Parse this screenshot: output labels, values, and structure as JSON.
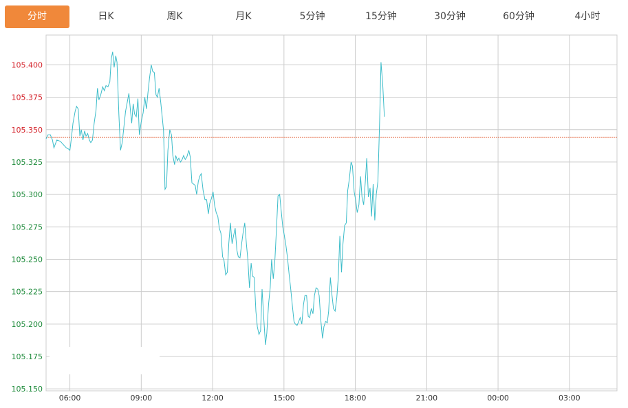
{
  "tabs": [
    {
      "label": "分时",
      "active": true
    },
    {
      "label": "日K",
      "active": false
    },
    {
      "label": "周K",
      "active": false
    },
    {
      "label": "月K",
      "active": false
    },
    {
      "label": "5分钟",
      "active": false
    },
    {
      "label": "15分钟",
      "active": false
    },
    {
      "label": "30分钟",
      "active": false
    },
    {
      "label": "60分钟",
      "active": false
    },
    {
      "label": "4小时",
      "active": false
    }
  ],
  "colors": {
    "accent": "#f0883a",
    "line": "#3bbcc9",
    "reference": "#e0552a",
    "above_ref_label": "#d4222a",
    "below_ref_label": "#1d8a3a",
    "grid": "#cccccc"
  },
  "chart_data": {
    "type": "line",
    "title": "",
    "xlabel": "",
    "ylabel": "",
    "x_ticks": [
      "06:00",
      "09:00",
      "12:00",
      "15:00",
      "18:00",
      "21:00",
      "00:00",
      "03:00"
    ],
    "y_ticks": [
      105.4,
      105.375,
      105.35,
      105.325,
      105.3,
      105.275,
      105.25,
      105.225,
      105.2,
      105.175,
      105.15
    ],
    "y_tick_labels": [
      "105.400",
      "105.375",
      "105.350",
      "105.325",
      "105.300",
      "105.275",
      "105.250",
      "105.225",
      "105.200",
      "105.175",
      "105.150"
    ],
    "ylim": [
      105.1485,
      105.423
    ],
    "x_hours_range": [
      5.0,
      29.0
    ],
    "reference_price": 105.344,
    "grid": true,
    "series": [
      {
        "values": [
          [
            5.0,
            105.343
          ],
          [
            5.08,
            105.346
          ],
          [
            5.18,
            105.346
          ],
          [
            5.27,
            105.342
          ],
          [
            5.33,
            105.336
          ],
          [
            5.45,
            105.342
          ],
          [
            5.6,
            105.341
          ],
          [
            5.75,
            105.338
          ],
          [
            5.85,
            105.336
          ],
          [
            5.95,
            105.335
          ],
          [
            6.0,
            105.334
          ],
          [
            6.06,
            105.343
          ],
          [
            6.13,
            105.355
          ],
          [
            6.22,
            105.364
          ],
          [
            6.28,
            105.368
          ],
          [
            6.35,
            105.366
          ],
          [
            6.42,
            105.345
          ],
          [
            6.48,
            105.35
          ],
          [
            6.55,
            105.342
          ],
          [
            6.62,
            105.349
          ],
          [
            6.68,
            105.345
          ],
          [
            6.75,
            105.347
          ],
          [
            6.82,
            105.342
          ],
          [
            6.88,
            105.34
          ],
          [
            6.95,
            105.342
          ],
          [
            7.02,
            105.355
          ],
          [
            7.1,
            105.365
          ],
          [
            7.16,
            105.382
          ],
          [
            7.22,
            105.373
          ],
          [
            7.3,
            105.377
          ],
          [
            7.38,
            105.383
          ],
          [
            7.45,
            105.38
          ],
          [
            7.52,
            105.384
          ],
          [
            7.6,
            105.383
          ],
          [
            7.68,
            105.387
          ],
          [
            7.74,
            105.405
          ],
          [
            7.8,
            105.41
          ],
          [
            7.86,
            105.398
          ],
          [
            7.93,
            105.407
          ],
          [
            7.98,
            105.402
          ],
          [
            8.06,
            105.362
          ],
          [
            8.13,
            105.334
          ],
          [
            8.2,
            105.34
          ],
          [
            8.27,
            105.352
          ],
          [
            8.34,
            105.364
          ],
          [
            8.42,
            105.372
          ],
          [
            8.48,
            105.378
          ],
          [
            8.55,
            105.364
          ],
          [
            8.6,
            105.355
          ],
          [
            8.66,
            105.37
          ],
          [
            8.72,
            105.362
          ],
          [
            8.79,
            105.36
          ],
          [
            8.86,
            105.374
          ],
          [
            8.92,
            105.346
          ],
          [
            9.0,
            105.356
          ],
          [
            9.08,
            105.363
          ],
          [
            9.15,
            105.375
          ],
          [
            9.22,
            105.366
          ],
          [
            9.28,
            105.378
          ],
          [
            9.35,
            105.39
          ],
          [
            9.42,
            105.4
          ],
          [
            9.48,
            105.395
          ],
          [
            9.55,
            105.394
          ],
          [
            9.62,
            105.377
          ],
          [
            9.68,
            105.375
          ],
          [
            9.75,
            105.382
          ],
          [
            9.82,
            105.371
          ],
          [
            9.88,
            105.36
          ],
          [
            9.94,
            105.349
          ],
          [
            10.0,
            105.304
          ],
          [
            10.06,
            105.306
          ],
          [
            10.12,
            105.334
          ],
          [
            10.2,
            105.35
          ],
          [
            10.27,
            105.346
          ],
          [
            10.33,
            105.33
          ],
          [
            10.4,
            105.323
          ],
          [
            10.45,
            105.33
          ],
          [
            10.52,
            105.326
          ],
          [
            10.58,
            105.328
          ],
          [
            10.65,
            105.325
          ],
          [
            10.72,
            105.327
          ],
          [
            10.78,
            105.33
          ],
          [
            10.85,
            105.327
          ],
          [
            10.92,
            105.329
          ],
          [
            11.0,
            105.334
          ],
          [
            11.06,
            105.329
          ],
          [
            11.13,
            105.309
          ],
          [
            11.2,
            105.308
          ],
          [
            11.27,
            105.307
          ],
          [
            11.33,
            105.3
          ],
          [
            11.4,
            105.31
          ],
          [
            11.46,
            105.314
          ],
          [
            11.52,
            105.316
          ],
          [
            11.6,
            105.303
          ],
          [
            11.68,
            105.296
          ],
          [
            11.75,
            105.296
          ],
          [
            11.82,
            105.285
          ],
          [
            11.88,
            105.293
          ],
          [
            11.95,
            105.297
          ],
          [
            12.02,
            105.302
          ],
          [
            12.08,
            105.292
          ],
          [
            12.15,
            105.286
          ],
          [
            12.22,
            105.283
          ],
          [
            12.28,
            105.274
          ],
          [
            12.35,
            105.27
          ],
          [
            12.42,
            105.252
          ],
          [
            12.48,
            105.249
          ],
          [
            12.55,
            105.238
          ],
          [
            12.62,
            105.24
          ],
          [
            12.68,
            105.262
          ],
          [
            12.75,
            105.278
          ],
          [
            12.82,
            105.262
          ],
          [
            12.88,
            105.268
          ],
          [
            12.95,
            105.274
          ],
          [
            13.02,
            105.257
          ],
          [
            13.08,
            105.252
          ],
          [
            13.15,
            105.251
          ],
          [
            13.22,
            105.262
          ],
          [
            13.28,
            105.27
          ],
          [
            13.35,
            105.278
          ],
          [
            13.42,
            105.262
          ],
          [
            13.48,
            105.25
          ],
          [
            13.55,
            105.228
          ],
          [
            13.62,
            105.247
          ],
          [
            13.68,
            105.237
          ],
          [
            13.75,
            105.236
          ],
          [
            13.82,
            105.21
          ],
          [
            13.88,
            105.198
          ],
          [
            13.95,
            105.192
          ],
          [
            14.02,
            105.195
          ],
          [
            14.08,
            105.227
          ],
          [
            14.15,
            105.205
          ],
          [
            14.22,
            105.184
          ],
          [
            14.28,
            105.193
          ],
          [
            14.35,
            105.215
          ],
          [
            14.42,
            105.228
          ],
          [
            14.48,
            105.25
          ],
          [
            14.55,
            105.235
          ],
          [
            14.62,
            105.25
          ],
          [
            14.68,
            105.272
          ],
          [
            14.75,
            105.299
          ],
          [
            14.82,
            105.3
          ],
          [
            14.88,
            105.288
          ],
          [
            14.95,
            105.275
          ],
          [
            15.02,
            105.268
          ],
          [
            15.08,
            105.261
          ],
          [
            15.15,
            105.251
          ],
          [
            15.22,
            105.238
          ],
          [
            15.28,
            105.228
          ],
          [
            15.35,
            105.215
          ],
          [
            15.42,
            105.202
          ],
          [
            15.48,
            105.2
          ],
          [
            15.55,
            105.199
          ],
          [
            15.62,
            105.202
          ],
          [
            15.68,
            105.205
          ],
          [
            15.75,
            105.2
          ],
          [
            15.82,
            105.215
          ],
          [
            15.88,
            105.222
          ],
          [
            15.95,
            105.222
          ],
          [
            16.02,
            105.206
          ],
          [
            16.08,
            105.205
          ],
          [
            16.15,
            105.212
          ],
          [
            16.22,
            105.208
          ],
          [
            16.28,
            105.222
          ],
          [
            16.35,
            105.228
          ],
          [
            16.42,
            105.227
          ],
          [
            16.48,
            105.222
          ],
          [
            16.55,
            105.203
          ],
          [
            16.62,
            105.189
          ],
          [
            16.68,
            105.198
          ],
          [
            16.75,
            105.202
          ],
          [
            16.82,
            105.201
          ],
          [
            16.88,
            105.21
          ],
          [
            16.95,
            105.236
          ],
          [
            17.02,
            105.222
          ],
          [
            17.08,
            105.212
          ],
          [
            17.15,
            105.21
          ],
          [
            17.22,
            105.22
          ],
          [
            17.28,
            105.235
          ],
          [
            17.35,
            105.268
          ],
          [
            17.42,
            105.24
          ],
          [
            17.48,
            105.262
          ],
          [
            17.55,
            105.276
          ],
          [
            17.62,
            105.278
          ],
          [
            17.68,
            105.303
          ],
          [
            17.75,
            105.312
          ],
          [
            17.82,
            105.325
          ],
          [
            17.88,
            105.322
          ],
          [
            17.95,
            105.302
          ],
          [
            18.02,
            105.295
          ],
          [
            18.08,
            105.286
          ],
          [
            18.15,
            105.292
          ],
          [
            18.22,
            105.314
          ],
          [
            18.28,
            105.298
          ],
          [
            18.35,
            105.292
          ],
          [
            18.42,
            105.31
          ],
          [
            18.48,
            105.328
          ],
          [
            18.55,
            105.298
          ],
          [
            18.62,
            105.305
          ],
          [
            18.68,
            105.283
          ],
          [
            18.75,
            105.308
          ],
          [
            18.82,
            105.28
          ],
          [
            18.88,
            105.3
          ],
          [
            18.95,
            105.31
          ],
          [
            19.02,
            105.356
          ],
          [
            19.08,
            105.402
          ],
          [
            19.15,
            105.385
          ],
          [
            19.22,
            105.36
          ]
        ]
      }
    ]
  }
}
